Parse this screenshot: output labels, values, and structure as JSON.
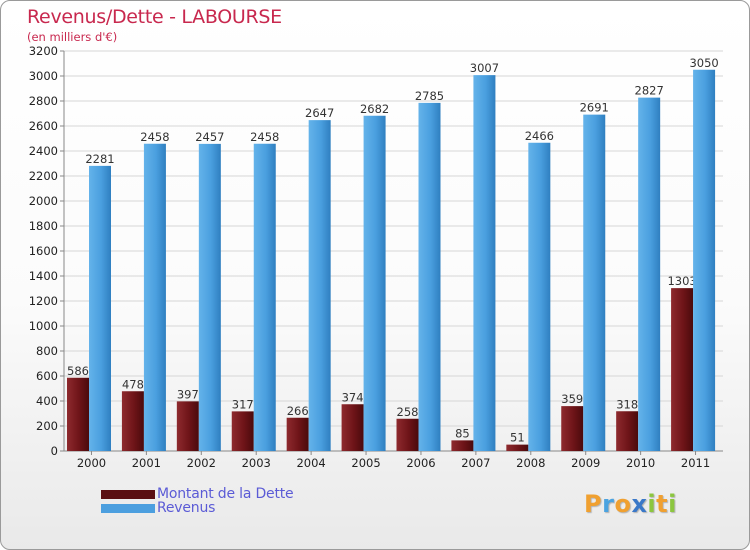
{
  "chart_data": {
    "type": "bar",
    "title": "Revenus/Dette - LABOURSE",
    "subtitle": "(en milliers d'€)",
    "categories": [
      "2000",
      "2001",
      "2002",
      "2003",
      "2004",
      "2005",
      "2006",
      "2007",
      "2008",
      "2009",
      "2010",
      "2011"
    ],
    "series": [
      {
        "name": "Montant de la Dette",
        "color": "#7a1a1e",
        "values": [
          586,
          478,
          397,
          317,
          266,
          374,
          258,
          85,
          51,
          359,
          318,
          1303
        ]
      },
      {
        "name": "Revenus",
        "color": "#4c9fdf",
        "values": [
          2281,
          2458,
          2457,
          2458,
          2647,
          2682,
          2785,
          3007,
          2466,
          2691,
          2827,
          3050
        ]
      }
    ],
    "ylim": [
      0,
      3200
    ],
    "yticks": [
      0,
      200,
      400,
      600,
      800,
      1000,
      1200,
      1400,
      1600,
      1800,
      2000,
      2200,
      2400,
      2600,
      2800,
      3000,
      3200
    ],
    "grid": true,
    "legend_position": "bottom-left"
  },
  "logo": {
    "letters": [
      "P",
      "r",
      "o",
      "x",
      "i",
      "t",
      "i"
    ],
    "colors": [
      "#f0a030",
      "#4ba3e0",
      "#f0a030",
      "#3a78c8",
      "#8cc63f",
      "#f0a030",
      "#8cc63f"
    ]
  }
}
